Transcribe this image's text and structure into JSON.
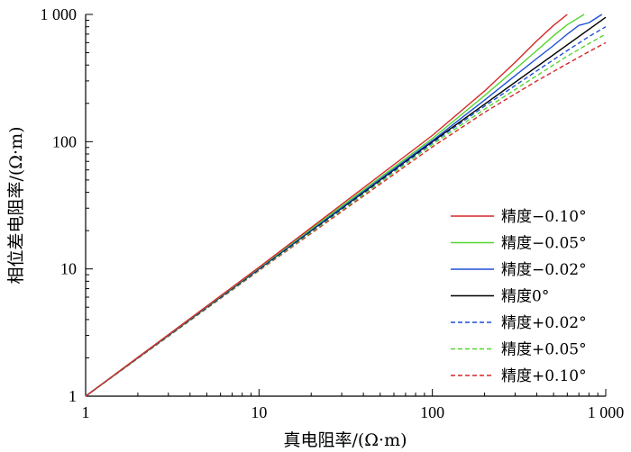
{
  "chart_data": {
    "type": "line",
    "xlabel": "真电阻率/(Ω·m)",
    "ylabel": "相位差电阻率/(Ω·m)",
    "xscale": "log",
    "yscale": "log",
    "xlim": [
      1,
      1000
    ],
    "ylim": [
      1,
      1000
    ],
    "xticks": [
      1,
      10,
      100,
      1000
    ],
    "xtick_labels": [
      "1",
      "10",
      "100",
      "1 000"
    ],
    "yticks": [
      1,
      10,
      100,
      1000
    ],
    "ytick_labels": [
      "1",
      "10",
      "100",
      "1 000"
    ],
    "grid": false,
    "legend_position": "right",
    "series": [
      {
        "name": "精度−0.10°",
        "color": "#d62728",
        "style": "solid",
        "x": [
          1,
          10,
          100,
          200,
          300,
          400,
          500,
          600
        ],
        "y": [
          1,
          10.3,
          112,
          250,
          420,
          620,
          820,
          1000
        ]
      },
      {
        "name": "精度−0.05°",
        "color": "#55d62f",
        "style": "solid",
        "x": [
          1,
          10,
          100,
          200,
          300,
          400,
          500,
          600,
          750
        ],
        "y": [
          1,
          10.2,
          106,
          230,
          370,
          520,
          680,
          830,
          1000
        ]
      },
      {
        "name": "精度−0.02°",
        "color": "#1f4fd6",
        "style": "solid",
        "x": [
          1,
          10,
          100,
          200,
          300,
          400,
          500,
          600,
          700,
          800,
          950
        ],
        "y": [
          1,
          10.1,
          102,
          212,
          330,
          450,
          570,
          700,
          820,
          860,
          1000
        ]
      },
      {
        "name": "精度0°",
        "color": "#000000",
        "style": "solid",
        "x": [
          1,
          10,
          100,
          1000
        ],
        "y": [
          1,
          10,
          100,
          950
        ]
      },
      {
        "name": "精度+0.02°",
        "color": "#1f4fd6",
        "style": "dashed",
        "x": [
          1,
          10,
          100,
          200,
          400,
          600,
          800,
          1000
        ],
        "y": [
          1,
          9.9,
          98,
          190,
          360,
          520,
          670,
          800
        ]
      },
      {
        "name": "精度+0.05°",
        "color": "#55d62f",
        "style": "dashed",
        "x": [
          1,
          10,
          100,
          200,
          400,
          600,
          800,
          1000
        ],
        "y": [
          1,
          9.8,
          95,
          180,
          330,
          470,
          590,
          700
        ]
      },
      {
        "name": "精度+0.10°",
        "color": "#d62728",
        "style": "dashed",
        "x": [
          1,
          10,
          100,
          200,
          400,
          600,
          800,
          1000
        ],
        "y": [
          1,
          9.7,
          91,
          170,
          300,
          410,
          510,
          600
        ]
      }
    ]
  }
}
